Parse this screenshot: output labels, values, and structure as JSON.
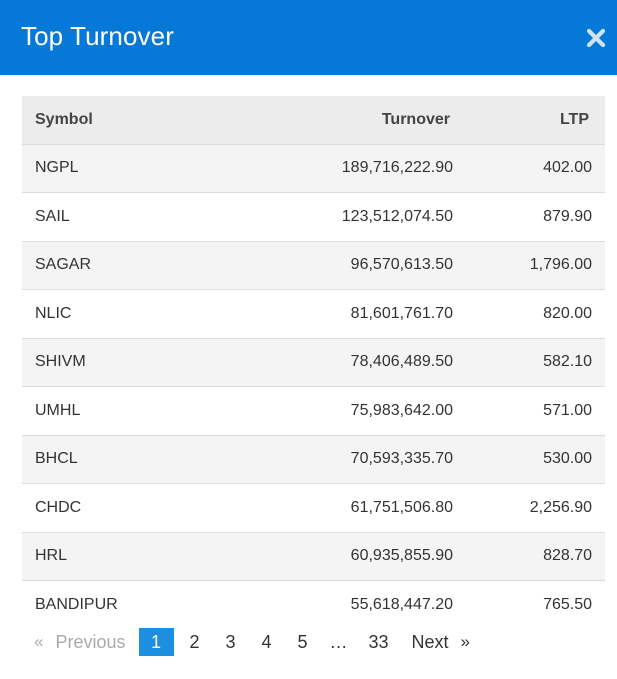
{
  "modal": {
    "title": "Top Turnover",
    "close_icon": "close-icon"
  },
  "table": {
    "columns": [
      "Symbol",
      "Turnover",
      "LTP"
    ],
    "rows": [
      {
        "symbol": "NGPL",
        "turnover": "189,716,222.90",
        "ltp": "402.00"
      },
      {
        "symbol": "SAIL",
        "turnover": "123,512,074.50",
        "ltp": "879.90"
      },
      {
        "symbol": "SAGAR",
        "turnover": "96,570,613.50",
        "ltp": "1,796.00"
      },
      {
        "symbol": "NLIC",
        "turnover": "81,601,761.70",
        "ltp": "820.00"
      },
      {
        "symbol": "SHIVM",
        "turnover": "78,406,489.50",
        "ltp": "582.10"
      },
      {
        "symbol": "UMHL",
        "turnover": "75,983,642.00",
        "ltp": "571.00"
      },
      {
        "symbol": "BHCL",
        "turnover": "70,593,335.70",
        "ltp": "530.00"
      },
      {
        "symbol": "CHDC",
        "turnover": "61,751,506.80",
        "ltp": "2,256.90"
      },
      {
        "symbol": "HRL",
        "turnover": "60,935,855.90",
        "ltp": "828.70"
      },
      {
        "symbol": "BANDIPUR",
        "turnover": "55,618,447.20",
        "ltp": "765.50"
      }
    ]
  },
  "pagination": {
    "prev_arrow": "«",
    "prev_label": "Previous",
    "pages": [
      "1",
      "2",
      "3",
      "4",
      "5"
    ],
    "ellipsis": "…",
    "last_page": "33",
    "next_label": "Next",
    "next_arrow": "»",
    "current_page": 1
  },
  "colors": {
    "header_bg": "#0678d7",
    "active_page_bg": "#1d8fe0",
    "table_header_bg": "#ececec",
    "row_stripe": "#f4f4f4"
  }
}
